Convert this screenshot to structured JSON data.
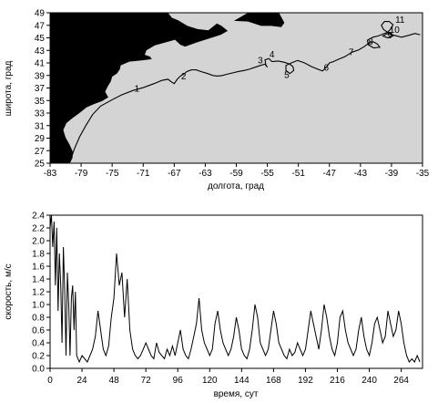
{
  "colors": {
    "sea": "#d4d4d4",
    "land": "#000000",
    "track": "#000000",
    "series": "#000000"
  },
  "chart_data": [
    {
      "type": "map_track",
      "xlabel": "долгота, град",
      "ylabel": "широта, град",
      "xlim": [
        -83,
        -35
      ],
      "ylim": [
        25,
        49
      ],
      "x_ticks": [
        -83,
        -79,
        -75,
        -71,
        -67,
        -63,
        -59,
        -55,
        -51,
        -47,
        -43,
        -39,
        -35
      ],
      "y_ticks": [
        25,
        27,
        29,
        31,
        33,
        35,
        37,
        39,
        41,
        43,
        45,
        47,
        49
      ],
      "grid": false,
      "track": {
        "lon": [
          -80.4,
          -79.9,
          -79.2,
          -78.4,
          -77.5,
          -76.5,
          -75.2,
          -73.8,
          -72.3,
          -70.9,
          -69.6,
          -68.6,
          -67.8,
          -67.4,
          -67.0,
          -66.6,
          -66.2,
          -65.8,
          -65.4,
          -64.8,
          -64.2,
          -63.5,
          -62.7,
          -62.0,
          -61.4,
          -60.8,
          -60.2,
          -59.5,
          -58.8,
          -58.0,
          -57.3,
          -56.6,
          -55.9,
          -55.3,
          -55.0,
          -55.2,
          -55.3,
          -54.8,
          -54.4,
          -53.6,
          -52.8,
          -52.1,
          -51.7,
          -51.6,
          -52.1,
          -52.6,
          -52.6,
          -51.9,
          -51.1,
          -50.2,
          -49.3,
          -48.5,
          -47.9,
          -47.4,
          -47.0,
          -46.5,
          -45.8,
          -45.0,
          -44.1,
          -43.2,
          -42.5,
          -42.0,
          -41.4,
          -40.8,
          -40.5,
          -41.3,
          -42.0,
          -42.1,
          -41.4,
          -40.7,
          -40.1,
          -39.5,
          -39.1,
          -38.8,
          -39.3,
          -39.9,
          -40.3,
          -40.0,
          -39.5,
          -39.0,
          -38.8,
          -39.5,
          -40.1,
          -39.5,
          -38.6,
          -37.7,
          -36.8,
          -36.0,
          -35.3
        ],
        "lat": [
          25.4,
          27.2,
          29.2,
          31.0,
          32.8,
          34.1,
          35.0,
          35.9,
          36.6,
          37.1,
          37.7,
          38.2,
          38.4,
          38.0,
          37.7,
          38.4,
          38.9,
          39.2,
          39.6,
          39.9,
          39.9,
          39.6,
          39.3,
          39.0,
          38.9,
          39.0,
          39.2,
          39.4,
          39.6,
          39.8,
          40.0,
          40.3,
          40.6,
          40.8,
          40.3,
          40.7,
          41.5,
          41.7,
          41.2,
          41.3,
          41.1,
          40.8,
          40.4,
          39.8,
          39.3,
          39.8,
          40.6,
          41.0,
          41.4,
          41.0,
          40.4,
          40.0,
          39.7,
          40.3,
          41.0,
          41.2,
          41.6,
          42.0,
          42.7,
          43.1,
          43.6,
          44.1,
          44.4,
          44.0,
          43.5,
          43.4,
          43.9,
          44.6,
          45.1,
          45.3,
          45.6,
          45.9,
          46.4,
          47.1,
          47.6,
          47.6,
          47.0,
          46.3,
          45.9,
          45.7,
          45.3,
          45.0,
          45.3,
          45.7,
          45.4,
          45.1,
          45.4,
          45.7,
          45.5
        ]
      },
      "annotations": [
        {
          "text": "1",
          "lon": -71.8,
          "lat": 36.4
        },
        {
          "text": "2",
          "lon": -65.8,
          "lat": 38.4
        },
        {
          "text": "3",
          "lon": -55.9,
          "lat": 40.9
        },
        {
          "text": "4",
          "lon": -54.4,
          "lat": 41.9
        },
        {
          "text": "5",
          "lon": -52.5,
          "lat": 38.6
        },
        {
          "text": "6",
          "lon": -47.4,
          "lat": 39.8
        },
        {
          "text": "7",
          "lon": -44.2,
          "lat": 42.2
        },
        {
          "text": "8",
          "lon": -41.7,
          "lat": 43.9
        },
        {
          "text": "9",
          "lon": -39.2,
          "lat": 44.9
        },
        {
          "text": "10",
          "lon": -38.6,
          "lat": 45.8
        },
        {
          "text": "11",
          "lon": -37.9,
          "lat": 47.4
        }
      ]
    },
    {
      "type": "line",
      "xlabel": "время, сут",
      "ylabel": "скорость, м/с",
      "xlim": [
        0,
        280
      ],
      "ylim": [
        0,
        2.4
      ],
      "x_ticks": [
        0,
        24,
        48,
        72,
        96,
        120,
        144,
        168,
        192,
        216,
        240,
        264
      ],
      "y_ticks": [
        0.0,
        0.2,
        0.4,
        0.6,
        0.8,
        1.0,
        1.2,
        1.4,
        1.6,
        1.8,
        2.0,
        2.2,
        2.4
      ],
      "y_tick_labels": [
        "0.0",
        "0.2",
        "0.4",
        "0.6",
        "0.8",
        "1.0",
        "1.2",
        "1.4",
        "1.6",
        "1.8",
        "2.0",
        "2.2",
        "2.4"
      ],
      "grid": false,
      "series": [
        {
          "x": [
            0,
            1,
            2,
            3,
            4,
            5,
            6,
            7,
            8,
            9,
            10,
            11,
            12,
            13,
            14,
            15,
            16,
            17,
            18,
            19,
            20,
            22,
            24,
            26,
            28,
            30,
            32,
            34,
            36,
            38,
            40,
            42,
            44,
            46,
            48,
            50,
            52,
            54,
            56,
            58,
            60,
            62,
            64,
            66,
            68,
            70,
            72,
            74,
            76,
            78,
            80,
            82,
            84,
            86,
            88,
            90,
            92,
            94,
            96,
            98,
            100,
            102,
            104,
            106,
            108,
            110,
            112,
            114,
            116,
            118,
            120,
            122,
            124,
            126,
            128,
            130,
            132,
            134,
            136,
            138,
            140,
            142,
            144,
            146,
            148,
            150,
            152,
            154,
            156,
            158,
            160,
            162,
            164,
            166,
            168,
            170,
            172,
            174,
            176,
            178,
            180,
            182,
            184,
            186,
            188,
            190,
            192,
            194,
            196,
            198,
            200,
            202,
            204,
            206,
            208,
            210,
            212,
            214,
            216,
            218,
            220,
            222,
            224,
            226,
            228,
            230,
            232,
            234,
            236,
            238,
            240,
            242,
            244,
            246,
            248,
            250,
            252,
            254,
            256,
            258,
            260,
            262,
            264,
            266,
            268,
            270,
            272,
            274,
            276,
            278
          ],
          "y": [
            2.2,
            2.4,
            1.9,
            2.3,
            1.3,
            2.2,
            0.9,
            1.8,
            1.3,
            0.4,
            1.9,
            1.2,
            0.2,
            1.5,
            1.0,
            0.2,
            1.1,
            1.3,
            0.6,
            1.2,
            0.2,
            0.1,
            0.2,
            0.15,
            0.1,
            0.2,
            0.3,
            0.5,
            0.9,
            0.6,
            0.3,
            0.2,
            0.35,
            0.8,
            1.1,
            1.8,
            1.3,
            1.5,
            0.8,
            1.4,
            0.6,
            0.3,
            0.2,
            0.15,
            0.2,
            0.3,
            0.4,
            0.3,
            0.2,
            0.15,
            0.4,
            0.25,
            0.2,
            0.15,
            0.3,
            0.2,
            0.35,
            0.2,
            0.4,
            0.6,
            0.3,
            0.2,
            0.15,
            0.3,
            0.5,
            0.7,
            1.1,
            0.6,
            0.4,
            0.3,
            0.2,
            0.3,
            0.7,
            0.9,
            0.6,
            0.4,
            0.3,
            0.2,
            0.3,
            0.5,
            0.8,
            0.6,
            0.3,
            0.2,
            0.15,
            0.3,
            0.6,
            1.0,
            0.8,
            0.4,
            0.3,
            0.2,
            0.3,
            0.6,
            0.9,
            0.7,
            0.4,
            0.3,
            0.2,
            0.15,
            0.3,
            0.2,
            0.25,
            0.4,
            0.3,
            0.2,
            0.3,
            0.6,
            0.9,
            0.7,
            0.5,
            0.3,
            0.6,
            1.0,
            0.8,
            0.5,
            0.3,
            0.2,
            0.4,
            0.8,
            0.9,
            0.6,
            0.4,
            0.3,
            0.2,
            0.3,
            0.6,
            0.8,
            0.5,
            0.3,
            0.2,
            0.4,
            0.7,
            0.8,
            0.6,
            0.4,
            0.5,
            0.9,
            0.7,
            0.5,
            0.6,
            0.9,
            0.7,
            0.4,
            0.2,
            0.1,
            0.15,
            0.1,
            0.2,
            0.1
          ],
          "color": "#000000"
        }
      ]
    }
  ]
}
